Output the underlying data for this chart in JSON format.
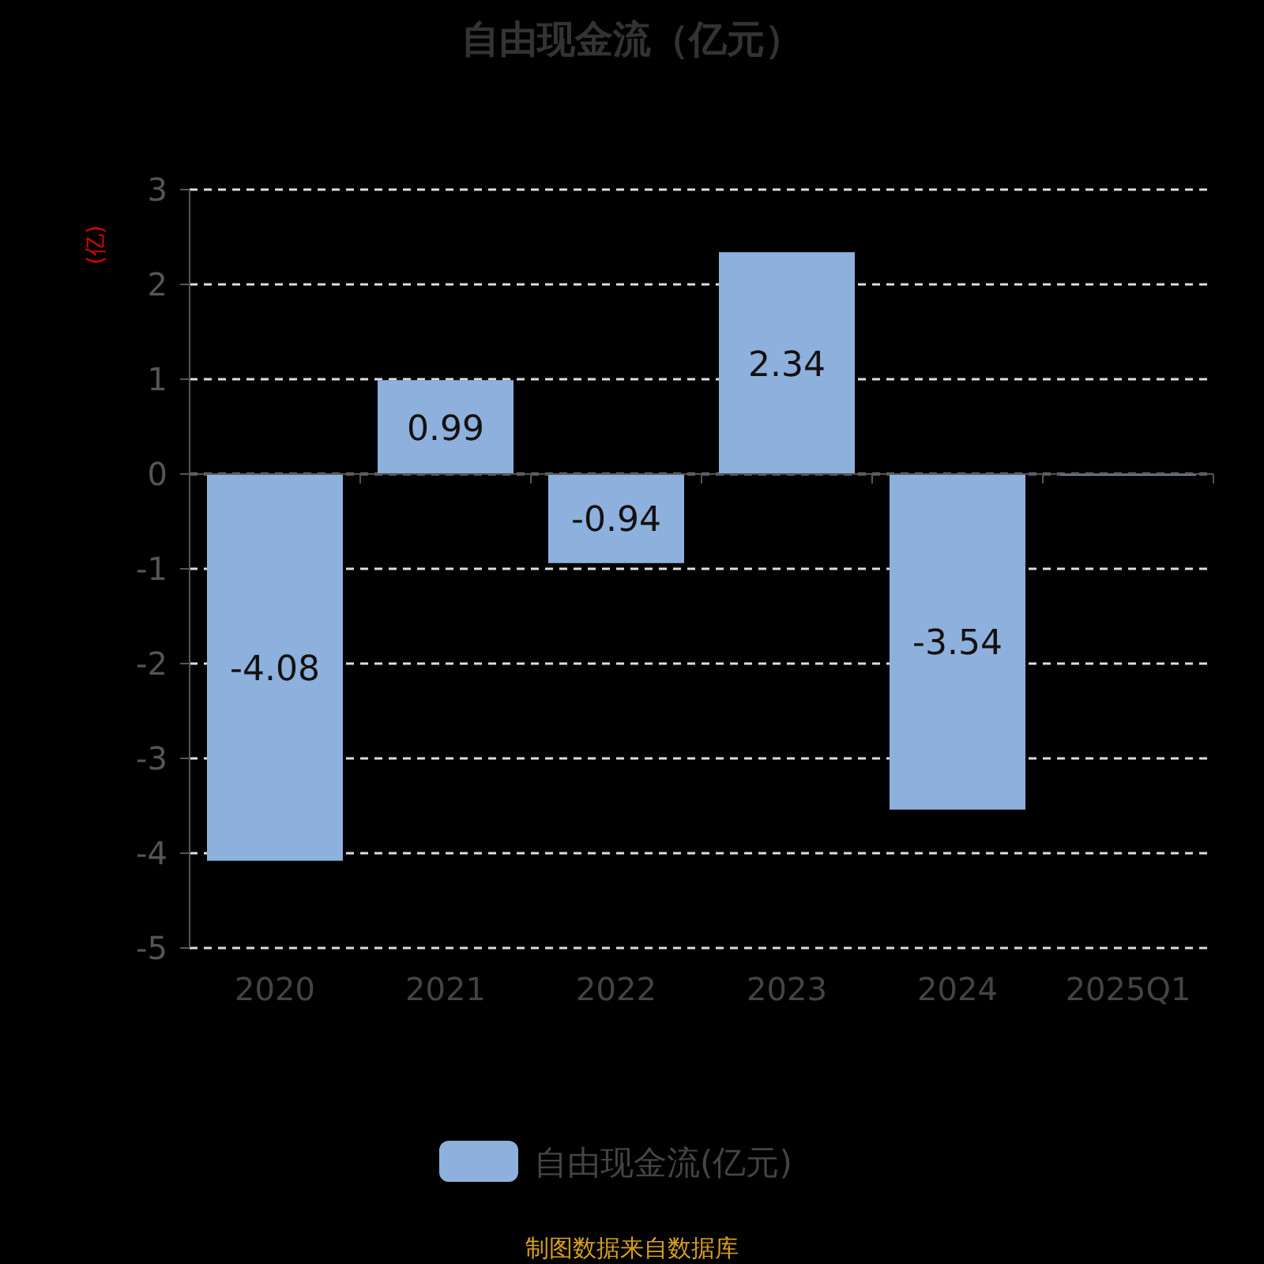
{
  "chart_data": {
    "type": "bar",
    "title": "自由现金流（亿元）",
    "ylabel": "(亿)",
    "categories": [
      "2020",
      "2021",
      "2022",
      "2023",
      "2024",
      "2025Q1"
    ],
    "series": [
      {
        "name": "自由现金流(亿元)",
        "color": "#8eb0dc",
        "values": [
          -4.08,
          0.99,
          -0.94,
          2.34,
          -3.54,
          0
        ],
        "value_labels": [
          "-4.08",
          "0.99",
          "-0.94",
          "2.34",
          "-3.54",
          null
        ]
      }
    ],
    "ylim": [
      -5,
      3
    ],
    "yticks": [
      -5,
      -4,
      -3,
      -2,
      -1,
      0,
      1,
      2,
      3
    ],
    "grid": "y",
    "legend": "bottom",
    "annotations": [
      "制图数据来自数据库"
    ]
  }
}
